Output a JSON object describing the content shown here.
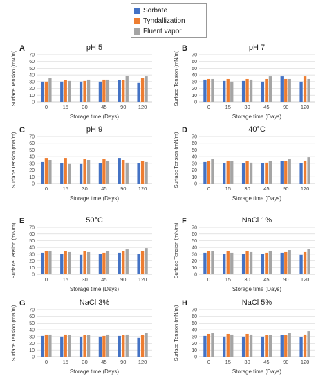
{
  "legend": {
    "items": [
      {
        "label": "Sorbate",
        "color": "#4472C4"
      },
      {
        "label": "Tyndallization",
        "color": "#ED7D31"
      },
      {
        "label": "Fluent vapor",
        "color": "#A5A5A5"
      }
    ]
  },
  "chart_data": [
    {
      "type": "bar",
      "panel_letter": "A",
      "title": "pH 5",
      "xlabel": "Storage time (Days)",
      "ylabel": "Surface Tension (mN/m)",
      "ylim": [
        0,
        70
      ],
      "yticks": [
        0,
        10,
        20,
        30,
        40,
        50,
        60,
        70
      ],
      "grid": true,
      "categories": [
        "0",
        "15",
        "30",
        "45",
        "90",
        "120"
      ],
      "series": [
        {
          "name": "Sorbate",
          "values": [
            30,
            30,
            30,
            30,
            32,
            28
          ]
        },
        {
          "name": "Tyndallization",
          "values": [
            30,
            32,
            31,
            33,
            32,
            36
          ]
        },
        {
          "name": "Fluent vapor",
          "values": [
            35,
            31,
            33,
            33,
            39,
            38
          ]
        }
      ]
    },
    {
      "type": "bar",
      "panel_letter": "B",
      "title": "pH 7",
      "xlabel": "Storage time (Days)",
      "ylabel": "Surface Tension (mN/m)",
      "ylim": [
        0,
        70
      ],
      "yticks": [
        0,
        10,
        20,
        30,
        40,
        50,
        60,
        70
      ],
      "grid": true,
      "categories": [
        "0",
        "15",
        "30",
        "45",
        "90",
        "120"
      ],
      "series": [
        {
          "name": "Sorbate",
          "values": [
            33,
            31,
            31,
            30,
            38,
            30
          ]
        },
        {
          "name": "Tyndallization",
          "values": [
            34,
            34,
            34,
            34,
            34,
            38
          ]
        },
        {
          "name": "Fluent vapor",
          "values": [
            34,
            30,
            33,
            38,
            34,
            34
          ]
        }
      ]
    },
    {
      "type": "bar",
      "panel_letter": "C",
      "title": "pH 9",
      "xlabel": "Storage time (Days)",
      "ylabel": "Surface Tension (mN/m)",
      "ylim": [
        0,
        70
      ],
      "yticks": [
        0,
        10,
        20,
        30,
        40,
        50,
        60,
        70
      ],
      "grid": true,
      "categories": [
        "0",
        "15",
        "30",
        "45",
        "90",
        "120"
      ],
      "series": [
        {
          "name": "Sorbate",
          "values": [
            32,
            30,
            29,
            30,
            38,
            30
          ]
        },
        {
          "name": "Tyndallization",
          "values": [
            38,
            38,
            36,
            36,
            35,
            33
          ]
        },
        {
          "name": "Fluent vapor",
          "values": [
            35,
            29,
            35,
            34,
            31,
            32
          ]
        }
      ]
    },
    {
      "type": "bar",
      "panel_letter": "D",
      "title": "40°C",
      "xlabel": "Storage time (Days)",
      "ylabel": "Surface Tension (mN/m)",
      "ylim": [
        0,
        70
      ],
      "yticks": [
        0,
        10,
        20,
        30,
        40,
        50,
        60,
        70
      ],
      "grid": true,
      "categories": [
        "0",
        "15",
        "30",
        "45",
        "90",
        "120"
      ],
      "series": [
        {
          "name": "Sorbate",
          "values": [
            32,
            30,
            30,
            30,
            33,
            30
          ]
        },
        {
          "name": "Tyndallization",
          "values": [
            34,
            34,
            33,
            31,
            33,
            34
          ]
        },
        {
          "name": "Fluent vapor",
          "values": [
            36,
            33,
            31,
            33,
            36,
            39
          ]
        }
      ]
    },
    {
      "type": "bar",
      "panel_letter": "E",
      "title": "50°C",
      "xlabel": "Storage time (Days)",
      "ylabel": "Surface Tension (mN/m)",
      "ylim": [
        0,
        70
      ],
      "yticks": [
        0,
        10,
        20,
        30,
        40,
        50,
        60,
        70
      ],
      "grid": true,
      "categories": [
        "0",
        "15",
        "30",
        "45",
        "90",
        "120"
      ],
      "series": [
        {
          "name": "Sorbate",
          "values": [
            32,
            30,
            29,
            30,
            32,
            30
          ]
        },
        {
          "name": "Tyndallization",
          "values": [
            34,
            34,
            34,
            32,
            34,
            34
          ]
        },
        {
          "name": "Fluent vapor",
          "values": [
            35,
            33,
            33,
            34,
            37,
            39
          ]
        }
      ]
    },
    {
      "type": "bar",
      "panel_letter": "F",
      "title": "NaCl 1%",
      "xlabel": "Storage time (Days)",
      "ylabel": "Surface Tension (mN/m)",
      "ylim": [
        0,
        70
      ],
      "yticks": [
        0,
        10,
        20,
        30,
        40,
        50,
        60,
        70
      ],
      "grid": true,
      "categories": [
        "0",
        "15",
        "30",
        "45",
        "90",
        "120"
      ],
      "series": [
        {
          "name": "Sorbate",
          "values": [
            32,
            30,
            30,
            30,
            32,
            29
          ]
        },
        {
          "name": "Tyndallization",
          "values": [
            34,
            34,
            34,
            32,
            33,
            33
          ]
        },
        {
          "name": "Fluent vapor",
          "values": [
            35,
            32,
            33,
            34,
            36,
            38
          ]
        }
      ]
    },
    {
      "type": "bar",
      "panel_letter": "G",
      "title": "NaCl 3%",
      "xlabel": "Storage time (Days)",
      "ylabel": "Surface Tension (mN/m)",
      "ylim": [
        0,
        70
      ],
      "yticks": [
        0,
        10,
        20,
        30,
        40,
        50,
        60,
        70
      ],
      "grid": true,
      "categories": [
        "0",
        "15",
        "30",
        "45",
        "90",
        "120"
      ],
      "series": [
        {
          "name": "Sorbate",
          "values": [
            31,
            30,
            29,
            30,
            31,
            28
          ]
        },
        {
          "name": "Tyndallization",
          "values": [
            33,
            33,
            32,
            31,
            32,
            32
          ]
        },
        {
          "name": "Fluent vapor",
          "values": [
            33,
            32,
            32,
            33,
            33,
            35
          ]
        }
      ]
    },
    {
      "type": "bar",
      "panel_letter": "H",
      "title": "NaCl 5%",
      "xlabel": "Storage time (Days)",
      "ylabel": "Surface Tension (mN/m)",
      "ylim": [
        0,
        70
      ],
      "yticks": [
        0,
        10,
        20,
        30,
        40,
        50,
        60,
        70
      ],
      "grid": true,
      "categories": [
        "0",
        "15",
        "30",
        "45",
        "90",
        "120"
      ],
      "series": [
        {
          "name": "Sorbate",
          "values": [
            31,
            30,
            30,
            30,
            32,
            29
          ]
        },
        {
          "name": "Tyndallization",
          "values": [
            34,
            34,
            34,
            32,
            32,
            33
          ]
        },
        {
          "name": "Fluent vapor",
          "values": [
            36,
            33,
            33,
            32,
            36,
            38
          ]
        }
      ]
    }
  ]
}
